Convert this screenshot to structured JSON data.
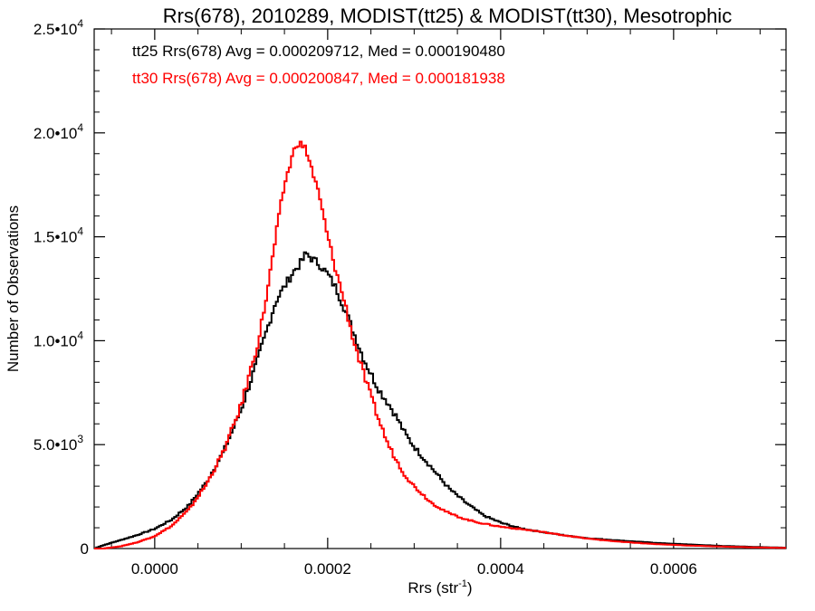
{
  "chart_data": {
    "type": "line",
    "title": "Rrs(678), 2010289, MODIST(tt25) & MODIST(tt30), Mesotrophic",
    "xlabel": {
      "base": "Rrs (str",
      "sup": "-1",
      "close": ")"
    },
    "ylabel": "Number of Observations",
    "xlim": [
      -7e-05,
      0.00073
    ],
    "ylim": [
      0,
      25000
    ],
    "x_ticks": [
      {
        "value": 0.0,
        "label": "0.0000"
      },
      {
        "value": 0.0002,
        "label": "0.0002"
      },
      {
        "value": 0.0004,
        "label": "0.0004"
      },
      {
        "value": 0.0006,
        "label": "0.0006"
      }
    ],
    "y_ticks": [
      {
        "value": 0,
        "mant": "0",
        "exp": ""
      },
      {
        "value": 5000,
        "mant": "5.0•10",
        "exp": "3"
      },
      {
        "value": 10000,
        "mant": "1.0•10",
        "exp": "4"
      },
      {
        "value": 15000,
        "mant": "1.5•10",
        "exp": "4"
      },
      {
        "value": 20000,
        "mant": "2.0•10",
        "exp": "4"
      },
      {
        "value": 25000,
        "mant": "2.5•10",
        "exp": "4"
      }
    ],
    "series": [
      {
        "name": "tt25",
        "color": "#000000",
        "annotation": "tt25 Rrs(678) Avg = 0.000209712, Med = 0.000190480",
        "points": [
          [
            -7e-05,
            0
          ],
          [
            -6e-05,
            150
          ],
          [
            -4e-05,
            400
          ],
          [
            -2e-05,
            650
          ],
          [
            0.0,
            950
          ],
          [
            2e-05,
            1400
          ],
          [
            4e-05,
            2100
          ],
          [
            6e-05,
            3200
          ],
          [
            8e-05,
            4700
          ],
          [
            0.0001,
            6700
          ],
          [
            0.00012,
            9200
          ],
          [
            0.00014,
            11900
          ],
          [
            0.00016,
            13300
          ],
          [
            0.00017,
            13800
          ],
          [
            0.000175,
            14200
          ],
          [
            0.00018,
            14000
          ],
          [
            0.00019,
            13700
          ],
          [
            0.0002,
            13200
          ],
          [
            0.00021,
            12500
          ],
          [
            0.00022,
            11500
          ],
          [
            0.00023,
            10400
          ],
          [
            0.00024,
            9300
          ],
          [
            0.00025,
            8400
          ],
          [
            0.00026,
            7600
          ],
          [
            0.00027,
            7000
          ],
          [
            0.00028,
            6300
          ],
          [
            0.00029,
            5500
          ],
          [
            0.0003,
            4900
          ],
          [
            0.00032,
            3900
          ],
          [
            0.00034,
            2900
          ],
          [
            0.00036,
            2200
          ],
          [
            0.00038,
            1600
          ],
          [
            0.0004,
            1250
          ],
          [
            0.00042,
            1000
          ],
          [
            0.00044,
            850
          ],
          [
            0.00046,
            720
          ],
          [
            0.00048,
            600
          ],
          [
            0.0005,
            500
          ],
          [
            0.00054,
            380
          ],
          [
            0.00058,
            270
          ],
          [
            0.00062,
            190
          ],
          [
            0.00066,
            120
          ],
          [
            0.0007,
            70
          ],
          [
            0.00073,
            40
          ]
        ]
      },
      {
        "name": "tt30",
        "color": "#ff0000",
        "annotation": "tt30 Rrs(678) Avg = 0.000200847, Med = 0.000181938",
        "points": [
          [
            -6e-05,
            0
          ],
          [
            -4e-05,
            100
          ],
          [
            -2e-05,
            300
          ],
          [
            0.0,
            600
          ],
          [
            2e-05,
            1100
          ],
          [
            4e-05,
            1900
          ],
          [
            6e-05,
            3100
          ],
          [
            8e-05,
            4700
          ],
          [
            0.0001,
            6900
          ],
          [
            0.00012,
            10000
          ],
          [
            0.00013,
            12300
          ],
          [
            0.00014,
            15000
          ],
          [
            0.00015,
            17500
          ],
          [
            0.00016,
            19000
          ],
          [
            0.000165,
            19600
          ],
          [
            0.00017,
            19400
          ],
          [
            0.000175,
            19200
          ],
          [
            0.00018,
            18500
          ],
          [
            0.00019,
            17000
          ],
          [
            0.0002,
            15000
          ],
          [
            0.00021,
            13300
          ],
          [
            0.00022,
            11800
          ],
          [
            0.00023,
            10000
          ],
          [
            0.00024,
            8600
          ],
          [
            0.00025,
            7300
          ],
          [
            0.00026,
            6100
          ],
          [
            0.00027,
            5000
          ],
          [
            0.00028,
            4200
          ],
          [
            0.00029,
            3500
          ],
          [
            0.0003,
            3000
          ],
          [
            0.00032,
            2200
          ],
          [
            0.00034,
            1700
          ],
          [
            0.00036,
            1400
          ],
          [
            0.00038,
            1200
          ],
          [
            0.0004,
            1050
          ],
          [
            0.00042,
            950
          ],
          [
            0.00044,
            850
          ],
          [
            0.00046,
            720
          ],
          [
            0.00048,
            600
          ],
          [
            0.0005,
            480
          ],
          [
            0.00054,
            320
          ],
          [
            0.00058,
            210
          ],
          [
            0.00062,
            140
          ],
          [
            0.00066,
            90
          ],
          [
            0.0007,
            50
          ],
          [
            0.00073,
            30
          ]
        ]
      }
    ],
    "grid": false,
    "legend": "top-left annotations"
  }
}
